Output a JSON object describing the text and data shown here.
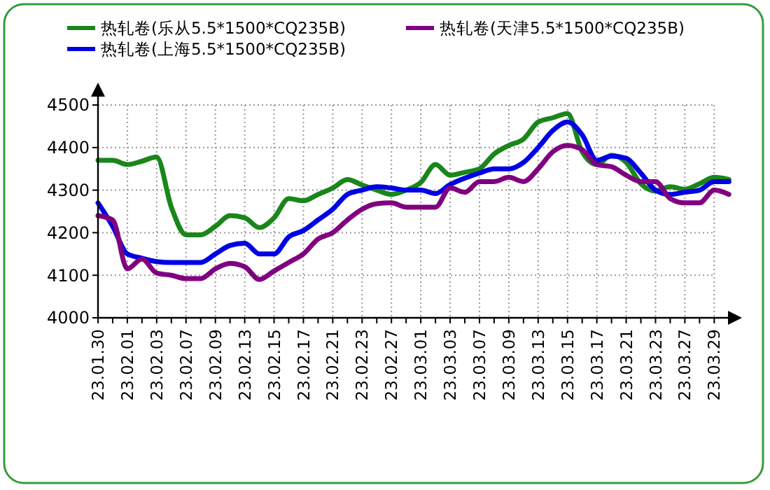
{
  "chart_data": {
    "type": "line",
    "categories": [
      "23.01.30",
      null,
      "23.02.01",
      null,
      "23.02.03",
      null,
      "23.02.07",
      null,
      "23.02.09",
      null,
      "23.02.13",
      null,
      "23.02.15",
      null,
      "23.02.17",
      null,
      "23.02.21",
      null,
      "23.02.23",
      null,
      "23.02.27",
      null,
      "23.03.01",
      null,
      "23.03.03",
      null,
      "23.03.07",
      null,
      "23.03.09",
      null,
      "23.03.13",
      null,
      "23.03.15",
      null,
      "23.03.17",
      null,
      "23.03.21",
      null,
      "23.03.23",
      null,
      "23.03.27",
      null,
      "23.03.29",
      null
    ],
    "series": [
      {
        "name": "热轧卷(乐从5.5*1500*CQ235B)",
        "color": "#1a861a",
        "values": [
          4370,
          4370,
          4360,
          4368,
          4378,
          4260,
          4195,
          4195,
          4215,
          4240,
          4235,
          4212,
          4235,
          4280,
          4275,
          4290,
          4305,
          4325,
          4312,
          4300,
          4290,
          4300,
          4318,
          4360,
          4335,
          4342,
          4350,
          4385,
          4405,
          4420,
          4460,
          4470,
          4480,
          4390,
          4360,
          4382,
          4365,
          4315,
          4298,
          4308,
          4302,
          4315,
          4330,
          4325
        ]
      },
      {
        "name": "热轧卷(上海5.5*1500*CQ235B)",
        "color": "#0000e6",
        "values": [
          4270,
          4215,
          4150,
          4140,
          4132,
          4130,
          4130,
          4130,
          4150,
          4170,
          4175,
          4150,
          4150,
          4190,
          4205,
          4230,
          4255,
          4290,
          4300,
          4308,
          4305,
          4300,
          4300,
          4292,
          4313,
          4328,
          4340,
          4350,
          4350,
          4365,
          4400,
          4440,
          4460,
          4430,
          4370,
          4380,
          4375,
          4340,
          4300,
          4290,
          4295,
          4300,
          4320,
          4320
        ]
      },
      {
        "name": "热轧卷(天津5.5*1500*CQ235B)",
        "color": "#800080",
        "values": [
          4240,
          4230,
          4115,
          4138,
          4105,
          4100,
          4092,
          4092,
          4115,
          4128,
          4120,
          4090,
          4110,
          4130,
          4150,
          4185,
          4200,
          4230,
          4255,
          4268,
          4270,
          4260,
          4260,
          4260,
          4305,
          4295,
          4320,
          4320,
          4330,
          4320,
          4350,
          4390,
          4405,
          4395,
          4360,
          4355,
          4335,
          4320,
          4320,
          4280,
          4270,
          4270,
          4300,
          4290
        ]
      }
    ],
    "ylim": [
      4000,
      4500
    ],
    "yticks": [
      4000,
      4100,
      4200,
      4300,
      4400,
      4500
    ],
    "grid": true,
    "legend": "top",
    "marker": "none",
    "line_style": "solid"
  }
}
